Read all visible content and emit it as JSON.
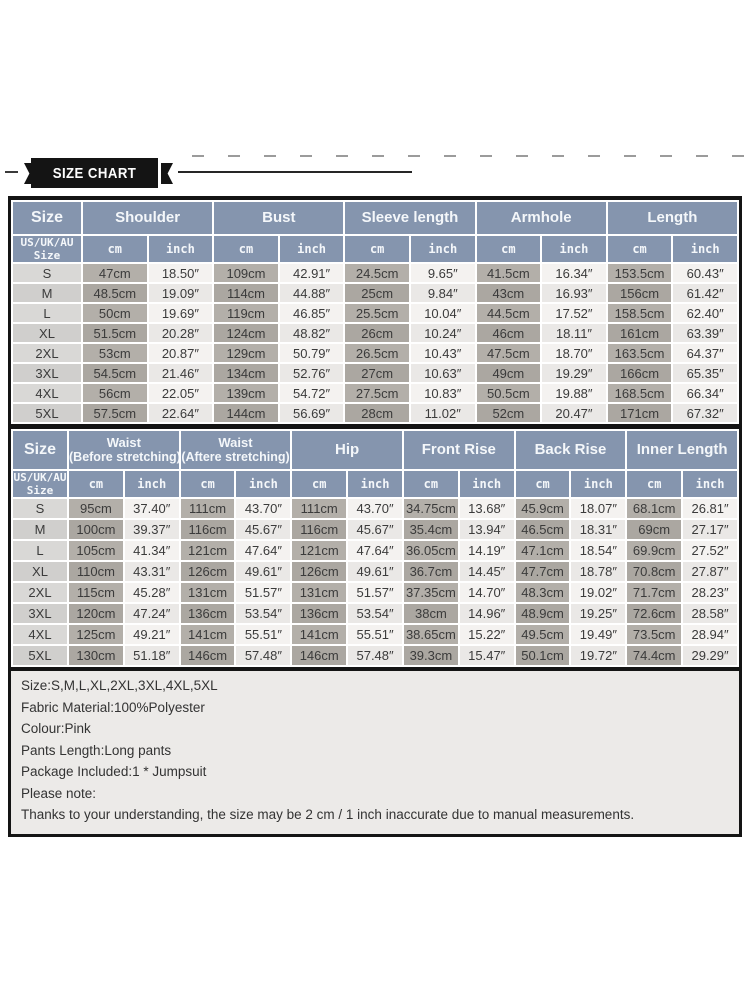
{
  "banner": {
    "title": "SIZE CHART"
  },
  "colors": {
    "header_bg": "#8595ae",
    "cm_column": "#b3afa9",
    "inch_column": "#f4f2f0",
    "size_column": "#d9d8d6",
    "ribbon_black": "#141414",
    "notes_bg": "#eceae8"
  },
  "size_table_top": {
    "size_header": "Size",
    "size_scheme": [
      "US/UK/AU",
      "Size"
    ],
    "unit_cm": "cm",
    "unit_inch": "inch",
    "groups": [
      {
        "label": "Shoulder"
      },
      {
        "label": "Bust"
      },
      {
        "label": "Sleeve length"
      },
      {
        "label": "Armhole"
      },
      {
        "label": "Length"
      }
    ],
    "rows": [
      {
        "size": "S",
        "values": [
          "47cm",
          "18.50″",
          "109cm",
          "42.91″",
          "24.5cm",
          "9.65″",
          "41.5cm",
          "16.34″",
          "153.5cm",
          "60.43″"
        ]
      },
      {
        "size": "M",
        "values": [
          "48.5cm",
          "19.09″",
          "114cm",
          "44.88″",
          "25cm",
          "9.84″",
          "43cm",
          "16.93″",
          "156cm",
          "61.42″"
        ]
      },
      {
        "size": "L",
        "values": [
          "50cm",
          "19.69″",
          "119cm",
          "46.85″",
          "25.5cm",
          "10.04″",
          "44.5cm",
          "17.52″",
          "158.5cm",
          "62.40″"
        ]
      },
      {
        "size": "XL",
        "values": [
          "51.5cm",
          "20.28″",
          "124cm",
          "48.82″",
          "26cm",
          "10.24″",
          "46cm",
          "18.11″",
          "161cm",
          "63.39″"
        ]
      },
      {
        "size": "2XL",
        "values": [
          "53cm",
          "20.87″",
          "129cm",
          "50.79″",
          "26.5cm",
          "10.43″",
          "47.5cm",
          "18.70″",
          "163.5cm",
          "64.37″"
        ]
      },
      {
        "size": "3XL",
        "values": [
          "54.5cm",
          "21.46″",
          "134cm",
          "52.76″",
          "27cm",
          "10.63″",
          "49cm",
          "19.29″",
          "166cm",
          "65.35″"
        ]
      },
      {
        "size": "4XL",
        "values": [
          "56cm",
          "22.05″",
          "139cm",
          "54.72″",
          "27.5cm",
          "10.83″",
          "50.5cm",
          "19.88″",
          "168.5cm",
          "66.34″"
        ]
      },
      {
        "size": "5XL",
        "values": [
          "57.5cm",
          "22.64″",
          "144cm",
          "56.69″",
          "28cm",
          "11.02″",
          "52cm",
          "20.47″",
          "171cm",
          "67.32″"
        ]
      }
    ]
  },
  "size_table_bottom": {
    "size_header": "Size",
    "size_scheme": [
      "US/UK/AU",
      "Size"
    ],
    "unit_cm": "cm",
    "unit_inch": "inch",
    "groups": [
      {
        "label": "Waist",
        "sublabel": "(Before stretching)"
      },
      {
        "label": "Waist",
        "sublabel": "(Aftere stretching)"
      },
      {
        "label": "Hip"
      },
      {
        "label": "Front Rise"
      },
      {
        "label": "Back Rise"
      },
      {
        "label": "Inner Length"
      }
    ],
    "rows": [
      {
        "size": "S",
        "values": [
          "95cm",
          "37.40″",
          "111cm",
          "43.70″",
          "111cm",
          "43.70″",
          "34.75cm",
          "13.68″",
          "45.9cm",
          "18.07″",
          "68.1cm",
          "26.81″"
        ]
      },
      {
        "size": "M",
        "values": [
          "100cm",
          "39.37″",
          "116cm",
          "45.67″",
          "116cm",
          "45.67″",
          "35.4cm",
          "13.94″",
          "46.5cm",
          "18.31″",
          "69cm",
          "27.17″"
        ]
      },
      {
        "size": "L",
        "values": [
          "105cm",
          "41.34″",
          "121cm",
          "47.64″",
          "121cm",
          "47.64″",
          "36.05cm",
          "14.19″",
          "47.1cm",
          "18.54″",
          "69.9cm",
          "27.52″"
        ]
      },
      {
        "size": "XL",
        "values": [
          "110cm",
          "43.31″",
          "126cm",
          "49.61″",
          "126cm",
          "49.61″",
          "36.7cm",
          "14.45″",
          "47.7cm",
          "18.78″",
          "70.8cm",
          "27.87″"
        ]
      },
      {
        "size": "2XL",
        "values": [
          "115cm",
          "45.28″",
          "131cm",
          "51.57″",
          "131cm",
          "51.57″",
          "37.35cm",
          "14.70″",
          "48.3cm",
          "19.02″",
          "71.7cm",
          "28.23″"
        ]
      },
      {
        "size": "3XL",
        "values": [
          "120cm",
          "47.24″",
          "136cm",
          "53.54″",
          "136cm",
          "53.54″",
          "38cm",
          "14.96″",
          "48.9cm",
          "19.25″",
          "72.6cm",
          "28.58″"
        ]
      },
      {
        "size": "4XL",
        "values": [
          "125cm",
          "49.21″",
          "141cm",
          "55.51″",
          "141cm",
          "55.51″",
          "38.65cm",
          "15.22″",
          "49.5cm",
          "19.49″",
          "73.5cm",
          "28.94″"
        ]
      },
      {
        "size": "5XL",
        "values": [
          "130cm",
          "51.18″",
          "146cm",
          "57.48″",
          "146cm",
          "57.48″",
          "39.3cm",
          "15.47″",
          "50.1cm",
          "19.72″",
          "74.4cm",
          "29.29″"
        ]
      }
    ]
  },
  "notes": {
    "lines": [
      "Size:S,M,L,XL,2XL,3XL,4XL,5XL",
      "Fabric Material:100%Polyester",
      "Colour:Pink",
      "Pants Length:Long pants",
      "Package Included:1 * Jumpsuit",
      "Please note:",
      "Thanks to your understanding, the size may be 2 cm / 1 inch inaccurate due to manual measurements."
    ]
  }
}
